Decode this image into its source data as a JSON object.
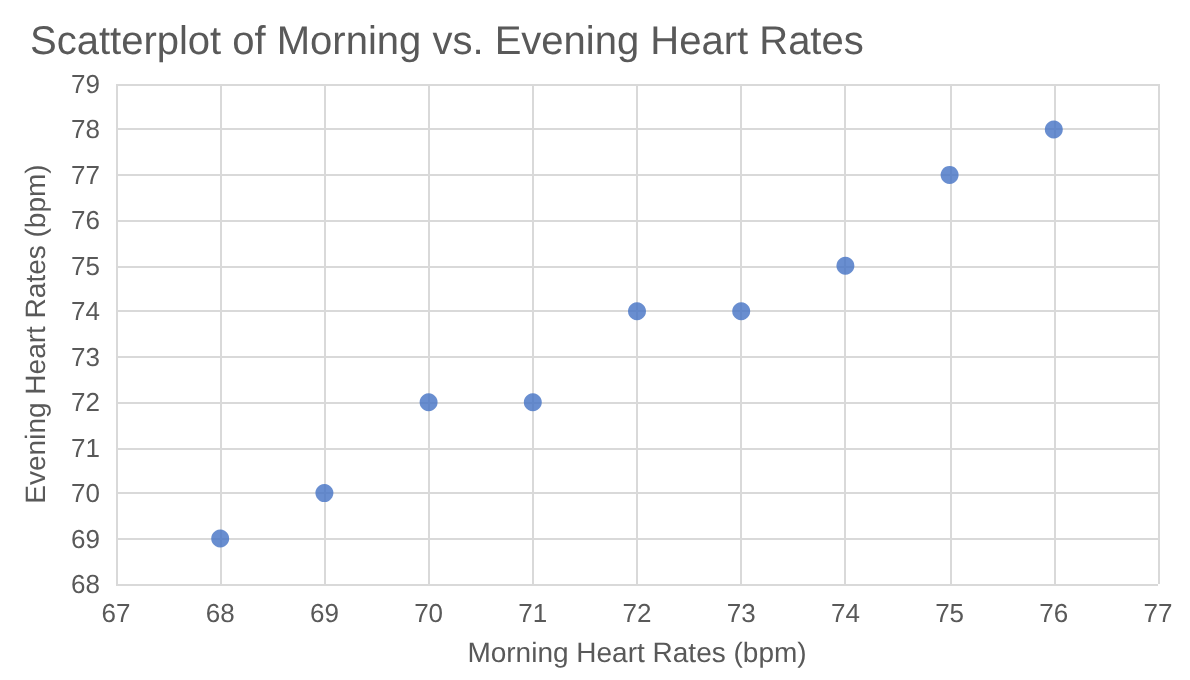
{
  "chart_data": {
    "type": "scatter",
    "title": "Scatterplot of Morning vs. Evening Heart Rates",
    "xlabel": "Morning Heart Rates (bpm)",
    "ylabel": "Evening Heart Rates (bpm)",
    "x": [
      68,
      69,
      70,
      71,
      72,
      73,
      74,
      75,
      76
    ],
    "series": [
      {
        "color": "#4472c4",
        "values": [
          69,
          70,
          72,
          72,
          74,
          74,
          75,
          77,
          78
        ]
      }
    ],
    "xlim": [
      67,
      77
    ],
    "xticks": [
      67,
      68,
      69,
      70,
      71,
      72,
      73,
      74,
      75,
      76,
      77
    ],
    "ylim": [
      68,
      79
    ],
    "yticks": [
      68,
      69,
      70,
      71,
      72,
      73,
      74,
      75,
      76,
      77,
      78,
      79
    ],
    "grid": true,
    "marker": "circle"
  }
}
